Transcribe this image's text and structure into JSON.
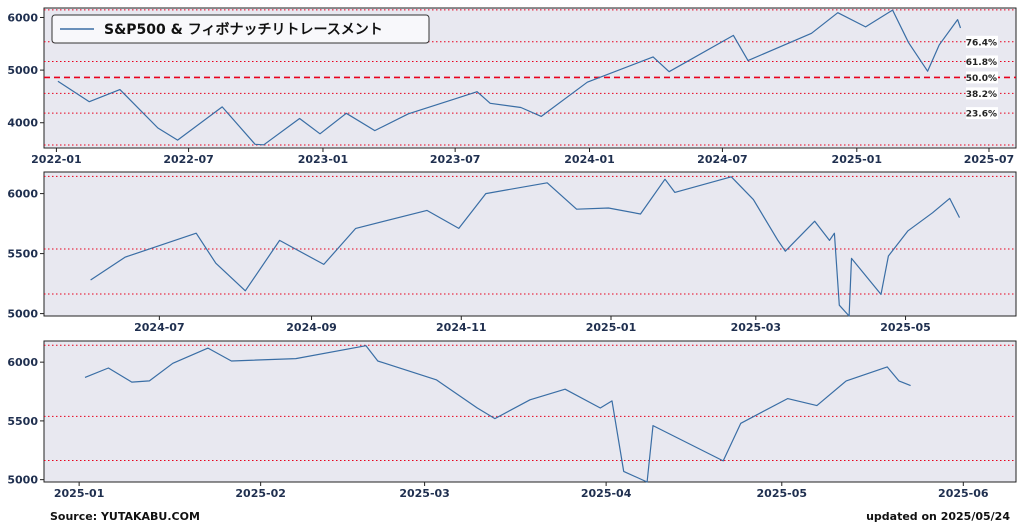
{
  "footer": {
    "source": "Source: YUTAKABU.COM",
    "updated": "updated on 2025/05/24"
  },
  "colors": {
    "line": "#3a6ea5",
    "fib": "#e8001c",
    "bg": "#e8e8f0"
  },
  "chart_data": [
    {
      "type": "line",
      "title": "",
      "legend": "S&P500 & フィボナッチリトレースメント",
      "legend_position": "top-left",
      "x_ticks": [
        "2022-01",
        "2022-07",
        "2023-01",
        "2023-07",
        "2024-01",
        "2024-07",
        "2025-01",
        "2025-07"
      ],
      "y_ticks": [
        4000,
        5000,
        6000
      ],
      "ylim": [
        3520,
        6180
      ],
      "fib_levels": [
        {
          "label": "76.4%",
          "style": "dotted"
        },
        {
          "label": "61.8%",
          "style": "dotted"
        },
        {
          "label": "50.0%",
          "style": "dashed"
        },
        {
          "label": "38.2%",
          "style": "dotted"
        },
        {
          "label": "23.6%",
          "style": "dotted"
        }
      ],
      "series": [
        {
          "x": [
            "2022-01-03",
            "2022-02-15",
            "2022-03-29",
            "2022-05-20",
            "2022-06-16",
            "2022-08-16",
            "2022-09-30",
            "2022-10-12",
            "2022-11-30",
            "2022-12-28",
            "2023-02-02",
            "2023-03-13",
            "2023-04-28",
            "2023-06-30",
            "2023-07-31",
            "2023-08-18",
            "2023-09-29",
            "2023-10-27",
            "2023-12-29",
            "2024-03-28",
            "2024-04-19",
            "2024-07-16",
            "2024-08-05",
            "2024-10-31",
            "2024-12-06",
            "2025-01-13",
            "2025-02-19",
            "2025-03-13",
            "2025-04-08",
            "2025-04-24",
            "2025-05-19",
            "2025-05-23"
          ],
          "y": [
            4790,
            4400,
            4630,
            3900,
            3670,
            4300,
            3590,
            3580,
            4080,
            3790,
            4180,
            3850,
            4170,
            4450,
            4590,
            4370,
            4290,
            4120,
            4770,
            5250,
            4970,
            5660,
            5180,
            5700,
            6090,
            5820,
            6140,
            5520,
            4980,
            5480,
            5960,
            5800
          ]
        }
      ]
    },
    {
      "type": "line",
      "title": "",
      "x_ticks": [
        "2024-07",
        "2024-09",
        "2024-11",
        "2025-01",
        "2025-03",
        "2025-05"
      ],
      "y_ticks": [
        5000,
        5500,
        6000
      ],
      "ylim": [
        4980,
        6180
      ],
      "fib_levels_shown": true,
      "series": [
        {
          "x": [
            "2024-06-03",
            "2024-06-17",
            "2024-07-16",
            "2024-07-24",
            "2024-08-05",
            "2024-08-19",
            "2024-09-06",
            "2024-09-19",
            "2024-10-18",
            "2024-10-31",
            "2024-11-11",
            "2024-12-06",
            "2024-12-18",
            "2024-12-31",
            "2025-01-13",
            "2025-01-23",
            "2025-01-27",
            "2025-02-19",
            "2025-02-28",
            "2025-03-10",
            "2025-03-13",
            "2025-03-25",
            "2025-03-31",
            "2025-04-02",
            "2025-04-04",
            "2025-04-08",
            "2025-04-09",
            "2025-04-21",
            "2025-04-24",
            "2025-05-02",
            "2025-05-12",
            "2025-05-19",
            "2025-05-23"
          ],
          "y": [
            5280,
            5470,
            5670,
            5420,
            5190,
            5610,
            5410,
            5710,
            5860,
            5710,
            6000,
            6090,
            5870,
            5880,
            5830,
            6120,
            6010,
            6140,
            5950,
            5610,
            5520,
            5770,
            5610,
            5670,
            5070,
            4980,
            5460,
            5160,
            5480,
            5690,
            5840,
            5960,
            5800
          ]
        }
      ]
    },
    {
      "type": "line",
      "title": "",
      "x_ticks": [
        "2025-01",
        "2025-02",
        "2025-03",
        "2025-04",
        "2025-05",
        "2025-06"
      ],
      "y_ticks": [
        5000,
        5500,
        6000
      ],
      "ylim": [
        4980,
        6180
      ],
      "fib_levels_shown": true,
      "series": [
        {
          "x": [
            "2025-01-02",
            "2025-01-06",
            "2025-01-10",
            "2025-01-13",
            "2025-01-17",
            "2025-01-23",
            "2025-01-27",
            "2025-02-07",
            "2025-02-19",
            "2025-02-21",
            "2025-03-03",
            "2025-03-10",
            "2025-03-13",
            "2025-03-19",
            "2025-03-25",
            "2025-03-31",
            "2025-04-02",
            "2025-04-04",
            "2025-04-08",
            "2025-04-09",
            "2025-04-21",
            "2025-04-24",
            "2025-05-02",
            "2025-05-07",
            "2025-05-12",
            "2025-05-19",
            "2025-05-21",
            "2025-05-23"
          ],
          "y": [
            5870,
            5950,
            5830,
            5840,
            5990,
            6120,
            6010,
            6030,
            6140,
            6010,
            5850,
            5610,
            5520,
            5680,
            5770,
            5610,
            5670,
            5070,
            4980,
            5460,
            5160,
            5480,
            5690,
            5630,
            5840,
            5960,
            5840,
            5800
          ]
        }
      ]
    }
  ]
}
